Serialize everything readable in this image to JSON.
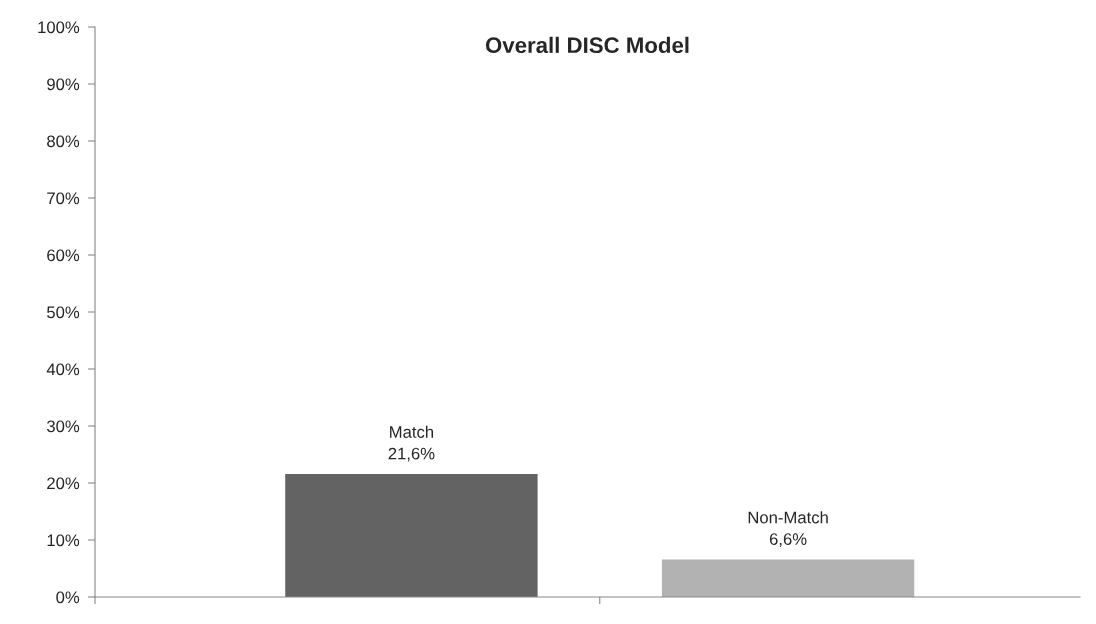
{
  "chart_data": {
    "type": "bar",
    "title": "Overall DISC Model",
    "categories": [
      "Match",
      "Non-Match"
    ],
    "values": [
      21.6,
      6.6
    ],
    "colors": [
      "#636363",
      "#b2b2b2"
    ],
    "value_labels": [
      "21,6%",
      "6,6%"
    ],
    "ylim": [
      0,
      100
    ],
    "yticks": [
      {
        "value": 0,
        "label": "0%"
      },
      {
        "value": 10,
        "label": "10%"
      },
      {
        "value": 20,
        "label": "20%"
      },
      {
        "value": 30,
        "label": "30%"
      },
      {
        "value": 40,
        "label": "40%"
      },
      {
        "value": 50,
        "label": "50%"
      },
      {
        "value": 60,
        "label": "60%"
      },
      {
        "value": 70,
        "label": "70%"
      },
      {
        "value": 80,
        "label": "80%"
      },
      {
        "value": 90,
        "label": "90%"
      },
      {
        "value": 100,
        "label": "100%"
      }
    ],
    "grid": false,
    "legend": false
  }
}
